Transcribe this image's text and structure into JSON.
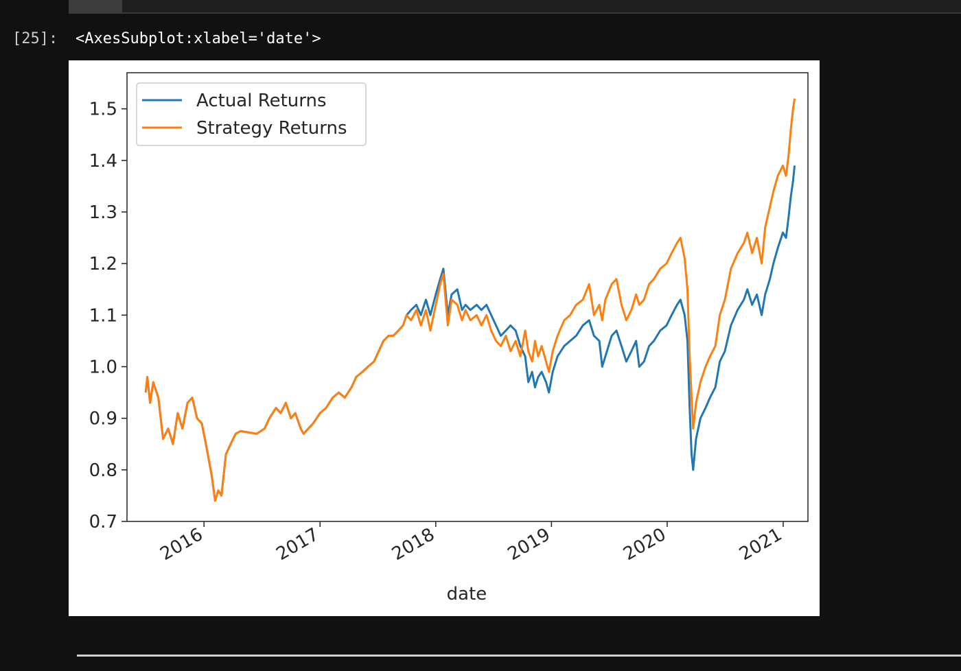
{
  "cell": {
    "prompt": "[25]:",
    "output_text": "<AxesSubplot:xlabel='date'>"
  },
  "chart_data": {
    "type": "line",
    "xlabel": "date",
    "ylabel": "",
    "title": "",
    "xlim": [
      "2015-05-03",
      "2021-03-20"
    ],
    "ylim": [
      0.7,
      1.57
    ],
    "yticks": [
      0.7,
      0.8,
      0.9,
      1.0,
      1.1,
      1.2,
      1.3,
      1.4,
      1.5
    ],
    "ytick_labels": [
      "0.7",
      "0.8",
      "0.9",
      "1.0",
      "1.1",
      "1.2",
      "1.3",
      "1.4",
      "1.5"
    ],
    "xticks": [
      "2016-01-01",
      "2017-01-01",
      "2018-01-01",
      "2019-01-01",
      "2020-01-01",
      "2021-01-01"
    ],
    "xtick_labels": [
      "2016",
      "2017",
      "2018",
      "2019",
      "2020",
      "2021"
    ],
    "grid": false,
    "legend_position": "top-left",
    "series": [
      {
        "name": "Actual Returns",
        "color": "#1f77b4",
        "points": [
          [
            "2015-07-01",
            0.95
          ],
          [
            "2015-07-06",
            0.98
          ],
          [
            "2015-07-15",
            0.93
          ],
          [
            "2015-07-25",
            0.97
          ],
          [
            "2015-08-10",
            0.94
          ],
          [
            "2015-08-25",
            0.86
          ],
          [
            "2015-09-10",
            0.88
          ],
          [
            "2015-09-25",
            0.85
          ],
          [
            "2015-10-10",
            0.91
          ],
          [
            "2015-10-25",
            0.88
          ],
          [
            "2015-11-10",
            0.93
          ],
          [
            "2015-11-25",
            0.94
          ],
          [
            "2015-12-10",
            0.9
          ],
          [
            "2015-12-25",
            0.89
          ],
          [
            "2016-01-10",
            0.84
          ],
          [
            "2016-01-25",
            0.79
          ],
          [
            "2016-02-05",
            0.74
          ],
          [
            "2016-02-15",
            0.76
          ],
          [
            "2016-02-25",
            0.75
          ],
          [
            "2016-03-10",
            0.83
          ],
          [
            "2016-03-25",
            0.85
          ],
          [
            "2016-04-10",
            0.87
          ],
          [
            "2016-04-25",
            0.875
          ],
          [
            "2016-06-15",
            0.87
          ],
          [
            "2016-07-10",
            0.88
          ],
          [
            "2016-07-25",
            0.9
          ],
          [
            "2016-08-15",
            0.92
          ],
          [
            "2016-08-30",
            0.91
          ],
          [
            "2016-09-15",
            0.93
          ],
          [
            "2016-10-01",
            0.9
          ],
          [
            "2016-10-15",
            0.91
          ],
          [
            "2016-11-01",
            0.88
          ],
          [
            "2016-11-10",
            0.87
          ],
          [
            "2016-11-25",
            0.88
          ],
          [
            "2016-12-10",
            0.89
          ],
          [
            "2017-01-01",
            0.91
          ],
          [
            "2017-01-20",
            0.92
          ],
          [
            "2017-02-10",
            0.94
          ],
          [
            "2017-03-01",
            0.95
          ],
          [
            "2017-03-20",
            0.94
          ],
          [
            "2017-04-10",
            0.96
          ],
          [
            "2017-04-25",
            0.98
          ],
          [
            "2017-05-15",
            0.99
          ],
          [
            "2017-06-01",
            1.0
          ],
          [
            "2017-06-20",
            1.01
          ],
          [
            "2017-07-05",
            1.03
          ],
          [
            "2017-07-20",
            1.05
          ],
          [
            "2017-08-05",
            1.06
          ],
          [
            "2017-08-20",
            1.06
          ],
          [
            "2017-09-05",
            1.07
          ],
          [
            "2017-09-20",
            1.08
          ],
          [
            "2017-10-01",
            1.1
          ],
          [
            "2017-10-15",
            1.11
          ],
          [
            "2017-11-01",
            1.12
          ],
          [
            "2017-11-15",
            1.1
          ],
          [
            "2017-12-01",
            1.13
          ],
          [
            "2017-12-15",
            1.1
          ],
          [
            "2018-01-01",
            1.14
          ],
          [
            "2018-01-15",
            1.17
          ],
          [
            "2018-01-25",
            1.19
          ],
          [
            "2018-02-08",
            1.1
          ],
          [
            "2018-02-20",
            1.14
          ],
          [
            "2018-03-10",
            1.15
          ],
          [
            "2018-03-25",
            1.11
          ],
          [
            "2018-04-05",
            1.12
          ],
          [
            "2018-04-20",
            1.11
          ],
          [
            "2018-05-10",
            1.12
          ],
          [
            "2018-05-25",
            1.11
          ],
          [
            "2018-06-10",
            1.12
          ],
          [
            "2018-06-25",
            1.1
          ],
          [
            "2018-07-10",
            1.08
          ],
          [
            "2018-07-25",
            1.06
          ],
          [
            "2018-08-10",
            1.07
          ],
          [
            "2018-08-25",
            1.08
          ],
          [
            "2018-09-10",
            1.07
          ],
          [
            "2018-09-25",
            1.04
          ],
          [
            "2018-10-10",
            1.02
          ],
          [
            "2018-10-20",
            0.97
          ],
          [
            "2018-11-01",
            0.99
          ],
          [
            "2018-11-10",
            0.96
          ],
          [
            "2018-11-20",
            0.98
          ],
          [
            "2018-12-01",
            0.99
          ],
          [
            "2018-12-15",
            0.97
          ],
          [
            "2018-12-24",
            0.95
          ],
          [
            "2019-01-05",
            0.99
          ],
          [
            "2019-01-20",
            1.02
          ],
          [
            "2019-02-10",
            1.04
          ],
          [
            "2019-03-01",
            1.05
          ],
          [
            "2019-03-20",
            1.06
          ],
          [
            "2019-04-10",
            1.08
          ],
          [
            "2019-04-30",
            1.09
          ],
          [
            "2019-05-15",
            1.06
          ],
          [
            "2019-06-01",
            1.05
          ],
          [
            "2019-06-10",
            1.0
          ],
          [
            "2019-06-20",
            1.02
          ],
          [
            "2019-07-10",
            1.06
          ],
          [
            "2019-07-25",
            1.07
          ],
          [
            "2019-08-10",
            1.04
          ],
          [
            "2019-08-25",
            1.01
          ],
          [
            "2019-09-10",
            1.03
          ],
          [
            "2019-09-25",
            1.05
          ],
          [
            "2019-10-05",
            1.0
          ],
          [
            "2019-10-20",
            1.01
          ],
          [
            "2019-11-05",
            1.04
          ],
          [
            "2019-11-20",
            1.05
          ],
          [
            "2019-12-10",
            1.07
          ],
          [
            "2019-12-30",
            1.08
          ],
          [
            "2020-01-15",
            1.1
          ],
          [
            "2020-02-01",
            1.12
          ],
          [
            "2020-02-12",
            1.13
          ],
          [
            "2020-02-25",
            1.1
          ],
          [
            "2020-03-05",
            1.05
          ],
          [
            "2020-03-12",
            0.92
          ],
          [
            "2020-03-18",
            0.83
          ],
          [
            "2020-03-23",
            0.8
          ],
          [
            "2020-04-01",
            0.86
          ],
          [
            "2020-04-15",
            0.9
          ],
          [
            "2020-05-01",
            0.92
          ],
          [
            "2020-05-15",
            0.94
          ],
          [
            "2020-06-01",
            0.96
          ],
          [
            "2020-06-15",
            1.01
          ],
          [
            "2020-07-01",
            1.03
          ],
          [
            "2020-07-20",
            1.08
          ],
          [
            "2020-08-10",
            1.11
          ],
          [
            "2020-08-30",
            1.13
          ],
          [
            "2020-09-10",
            1.15
          ],
          [
            "2020-09-25",
            1.12
          ],
          [
            "2020-10-10",
            1.14
          ],
          [
            "2020-10-25",
            1.1
          ],
          [
            "2020-11-05",
            1.14
          ],
          [
            "2020-11-20",
            1.17
          ],
          [
            "2020-12-01",
            1.2
          ],
          [
            "2020-12-15",
            1.23
          ],
          [
            "2020-12-31",
            1.26
          ],
          [
            "2021-01-10",
            1.25
          ],
          [
            "2021-01-18",
            1.29
          ],
          [
            "2021-01-25",
            1.33
          ],
          [
            "2021-02-01",
            1.36
          ],
          [
            "2021-02-06",
            1.39
          ]
        ]
      },
      {
        "name": "Strategy Returns",
        "color": "#ff7f0e",
        "points": [
          [
            "2015-07-01",
            0.95
          ],
          [
            "2015-07-06",
            0.98
          ],
          [
            "2015-07-15",
            0.93
          ],
          [
            "2015-07-25",
            0.97
          ],
          [
            "2015-08-10",
            0.94
          ],
          [
            "2015-08-25",
            0.86
          ],
          [
            "2015-09-10",
            0.88
          ],
          [
            "2015-09-25",
            0.85
          ],
          [
            "2015-10-10",
            0.91
          ],
          [
            "2015-10-25",
            0.88
          ],
          [
            "2015-11-10",
            0.93
          ],
          [
            "2015-11-25",
            0.94
          ],
          [
            "2015-12-10",
            0.9
          ],
          [
            "2015-12-25",
            0.89
          ],
          [
            "2016-01-10",
            0.84
          ],
          [
            "2016-01-25",
            0.79
          ],
          [
            "2016-02-05",
            0.74
          ],
          [
            "2016-02-15",
            0.76
          ],
          [
            "2016-02-25",
            0.75
          ],
          [
            "2016-03-10",
            0.83
          ],
          [
            "2016-03-25",
            0.85
          ],
          [
            "2016-04-10",
            0.87
          ],
          [
            "2016-04-25",
            0.875
          ],
          [
            "2016-06-15",
            0.87
          ],
          [
            "2016-07-10",
            0.88
          ],
          [
            "2016-07-25",
            0.9
          ],
          [
            "2016-08-15",
            0.92
          ],
          [
            "2016-08-30",
            0.91
          ],
          [
            "2016-09-15",
            0.93
          ],
          [
            "2016-10-01",
            0.9
          ],
          [
            "2016-10-15",
            0.91
          ],
          [
            "2016-11-01",
            0.88
          ],
          [
            "2016-11-10",
            0.87
          ],
          [
            "2016-11-25",
            0.88
          ],
          [
            "2016-12-10",
            0.89
          ],
          [
            "2017-01-01",
            0.91
          ],
          [
            "2017-01-20",
            0.92
          ],
          [
            "2017-02-10",
            0.94
          ],
          [
            "2017-03-01",
            0.95
          ],
          [
            "2017-03-20",
            0.94
          ],
          [
            "2017-04-10",
            0.96
          ],
          [
            "2017-04-25",
            0.98
          ],
          [
            "2017-05-15",
            0.99
          ],
          [
            "2017-06-01",
            1.0
          ],
          [
            "2017-06-20",
            1.01
          ],
          [
            "2017-07-05",
            1.03
          ],
          [
            "2017-07-20",
            1.05
          ],
          [
            "2017-08-05",
            1.06
          ],
          [
            "2017-08-20",
            1.06
          ],
          [
            "2017-09-05",
            1.07
          ],
          [
            "2017-09-20",
            1.08
          ],
          [
            "2017-10-01",
            1.1
          ],
          [
            "2017-10-15",
            1.09
          ],
          [
            "2017-11-01",
            1.11
          ],
          [
            "2017-11-15",
            1.08
          ],
          [
            "2017-12-01",
            1.11
          ],
          [
            "2017-12-15",
            1.07
          ],
          [
            "2018-01-01",
            1.12
          ],
          [
            "2018-01-15",
            1.16
          ],
          [
            "2018-01-25",
            1.18
          ],
          [
            "2018-02-08",
            1.08
          ],
          [
            "2018-02-20",
            1.13
          ],
          [
            "2018-03-10",
            1.12
          ],
          [
            "2018-03-25",
            1.09
          ],
          [
            "2018-04-05",
            1.11
          ],
          [
            "2018-04-20",
            1.09
          ],
          [
            "2018-05-10",
            1.1
          ],
          [
            "2018-05-25",
            1.08
          ],
          [
            "2018-06-10",
            1.1
          ],
          [
            "2018-06-25",
            1.07
          ],
          [
            "2018-07-10",
            1.05
          ],
          [
            "2018-07-25",
            1.04
          ],
          [
            "2018-08-10",
            1.06
          ],
          [
            "2018-08-25",
            1.03
          ],
          [
            "2018-09-10",
            1.05
          ],
          [
            "2018-09-25",
            1.02
          ],
          [
            "2018-10-10",
            1.07
          ],
          [
            "2018-10-20",
            1.03
          ],
          [
            "2018-11-01",
            1.01
          ],
          [
            "2018-11-10",
            1.05
          ],
          [
            "2018-11-20",
            1.02
          ],
          [
            "2018-12-01",
            1.04
          ],
          [
            "2018-12-15",
            1.01
          ],
          [
            "2018-12-24",
            0.99
          ],
          [
            "2019-01-05",
            1.03
          ],
          [
            "2019-01-20",
            1.06
          ],
          [
            "2019-02-10",
            1.09
          ],
          [
            "2019-03-01",
            1.1
          ],
          [
            "2019-03-20",
            1.12
          ],
          [
            "2019-04-10",
            1.13
          ],
          [
            "2019-04-30",
            1.16
          ],
          [
            "2019-05-15",
            1.1
          ],
          [
            "2019-06-01",
            1.12
          ],
          [
            "2019-06-10",
            1.09
          ],
          [
            "2019-06-20",
            1.13
          ],
          [
            "2019-07-10",
            1.16
          ],
          [
            "2019-07-25",
            1.17
          ],
          [
            "2019-08-10",
            1.12
          ],
          [
            "2019-08-25",
            1.09
          ],
          [
            "2019-09-10",
            1.11
          ],
          [
            "2019-09-25",
            1.14
          ],
          [
            "2019-10-05",
            1.12
          ],
          [
            "2019-10-20",
            1.13
          ],
          [
            "2019-11-05",
            1.16
          ],
          [
            "2019-11-20",
            1.17
          ],
          [
            "2019-12-10",
            1.19
          ],
          [
            "2019-12-30",
            1.2
          ],
          [
            "2020-01-15",
            1.22
          ],
          [
            "2020-02-01",
            1.24
          ],
          [
            "2020-02-12",
            1.25
          ],
          [
            "2020-02-25",
            1.21
          ],
          [
            "2020-03-05",
            1.15
          ],
          [
            "2020-03-12",
            1.02
          ],
          [
            "2020-03-18",
            0.94
          ],
          [
            "2020-03-23",
            0.88
          ],
          [
            "2020-04-01",
            0.93
          ],
          [
            "2020-04-15",
            0.97
          ],
          [
            "2020-05-01",
            1.0
          ],
          [
            "2020-05-15",
            1.02
          ],
          [
            "2020-06-01",
            1.04
          ],
          [
            "2020-06-15",
            1.1
          ],
          [
            "2020-07-01",
            1.13
          ],
          [
            "2020-07-20",
            1.19
          ],
          [
            "2020-08-10",
            1.22
          ],
          [
            "2020-08-30",
            1.24
          ],
          [
            "2020-09-10",
            1.26
          ],
          [
            "2020-09-25",
            1.22
          ],
          [
            "2020-10-10",
            1.25
          ],
          [
            "2020-10-25",
            1.2
          ],
          [
            "2020-11-05",
            1.27
          ],
          [
            "2020-11-20",
            1.31
          ],
          [
            "2020-12-01",
            1.34
          ],
          [
            "2020-12-15",
            1.37
          ],
          [
            "2020-12-31",
            1.39
          ],
          [
            "2021-01-10",
            1.37
          ],
          [
            "2021-01-18",
            1.41
          ],
          [
            "2021-01-25",
            1.46
          ],
          [
            "2021-02-01",
            1.5
          ],
          [
            "2021-02-06",
            1.52
          ]
        ]
      }
    ]
  }
}
